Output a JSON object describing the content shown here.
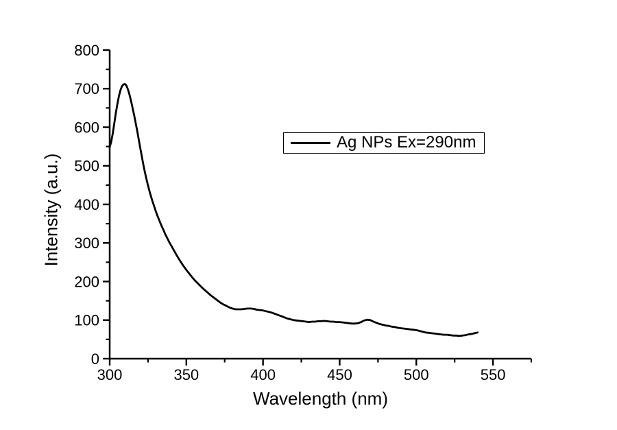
{
  "figure": {
    "background": "#ffffff",
    "axis_color": "#000000"
  },
  "chart_data": {
    "type": "line",
    "title": "",
    "xlabel": "Wavelength (nm)",
    "ylabel": "Intensity (a.u.)",
    "xlim": [
      300,
      575
    ],
    "ylim": [
      0,
      800
    ],
    "x_major_ticks": [
      300,
      350,
      400,
      450,
      500,
      550
    ],
    "x_minor_ticks": [
      325,
      375,
      425,
      475,
      525,
      575
    ],
    "y_major_ticks": [
      0,
      100,
      200,
      300,
      400,
      500,
      600,
      700,
      800
    ],
    "y_minor_ticks": [
      50,
      150,
      250,
      350,
      450,
      550,
      650,
      750
    ],
    "grid": false,
    "legend": {
      "position": "upper-middle",
      "border": true,
      "entries": [
        {
          "label": "Ag NPs Ex=290nm",
          "color": "#000000"
        }
      ]
    },
    "series": [
      {
        "name": "Ag NPs Ex=290nm",
        "color": "#000000",
        "x": [
          300,
          301,
          302,
          303,
          304,
          305,
          306,
          307,
          308,
          309,
          310,
          311,
          312,
          313,
          314,
          315,
          316,
          317,
          318,
          319,
          320,
          321,
          322,
          323,
          324,
          325,
          326,
          327,
          328,
          329,
          330,
          331,
          332,
          333,
          334,
          335,
          336,
          337,
          338,
          339,
          340,
          342,
          344,
          346,
          348,
          350,
          352,
          354,
          356,
          358,
          360,
          362,
          364,
          366,
          368,
          370,
          372,
          374,
          376,
          378,
          380,
          382,
          384,
          386,
          388,
          390,
          392,
          394,
          396,
          398,
          400,
          402,
          404,
          406,
          408,
          410,
          412,
          414,
          416,
          418,
          420,
          422,
          424,
          426,
          428,
          430,
          432,
          434,
          436,
          438,
          440,
          442,
          444,
          446,
          448,
          450,
          452,
          454,
          456,
          458,
          460,
          462,
          464,
          466,
          468,
          470,
          472,
          474,
          476,
          478,
          480,
          482,
          484,
          486,
          488,
          490,
          492,
          494,
          496,
          498,
          500,
          502,
          504,
          506,
          508,
          510,
          512,
          514,
          516,
          518,
          520,
          522,
          524,
          526,
          528,
          530,
          532,
          534,
          536,
          538,
          540
        ],
        "y": [
          548,
          562,
          584,
          610,
          636,
          660,
          680,
          696,
          706,
          711,
          712,
          707,
          697,
          683,
          667,
          649,
          630,
          610,
          589,
          567,
          545,
          523,
          502,
          483,
          465,
          449,
          434,
          420,
          407,
          395,
          383,
          372,
          362,
          352,
          343,
          334,
          325,
          317,
          309,
          301,
          294,
          280,
          266,
          253,
          241,
          230,
          220,
          210,
          201,
          193,
          185,
          178,
          171,
          164,
          158,
          152,
          146,
          141,
          137,
          133,
          130,
          128,
          128,
          128,
          129,
          130,
          130,
          129,
          127,
          126,
          125,
          123,
          121,
          119,
          116,
          113,
          110,
          107,
          104,
          102,
          100,
          99,
          98,
          97,
          96,
          95,
          96,
          96,
          97,
          97,
          98,
          97,
          96,
          96,
          95,
          95,
          94,
          93,
          92,
          91,
          91,
          92,
          95,
          99,
          101,
          100,
          96,
          93,
          90,
          88,
          86,
          85,
          83,
          82,
          80,
          79,
          78,
          77,
          76,
          75,
          74,
          72,
          70,
          68,
          67,
          66,
          65,
          64,
          63,
          62,
          62,
          61,
          60,
          60,
          59,
          60,
          61,
          63,
          64,
          66,
          68
        ]
      }
    ]
  }
}
